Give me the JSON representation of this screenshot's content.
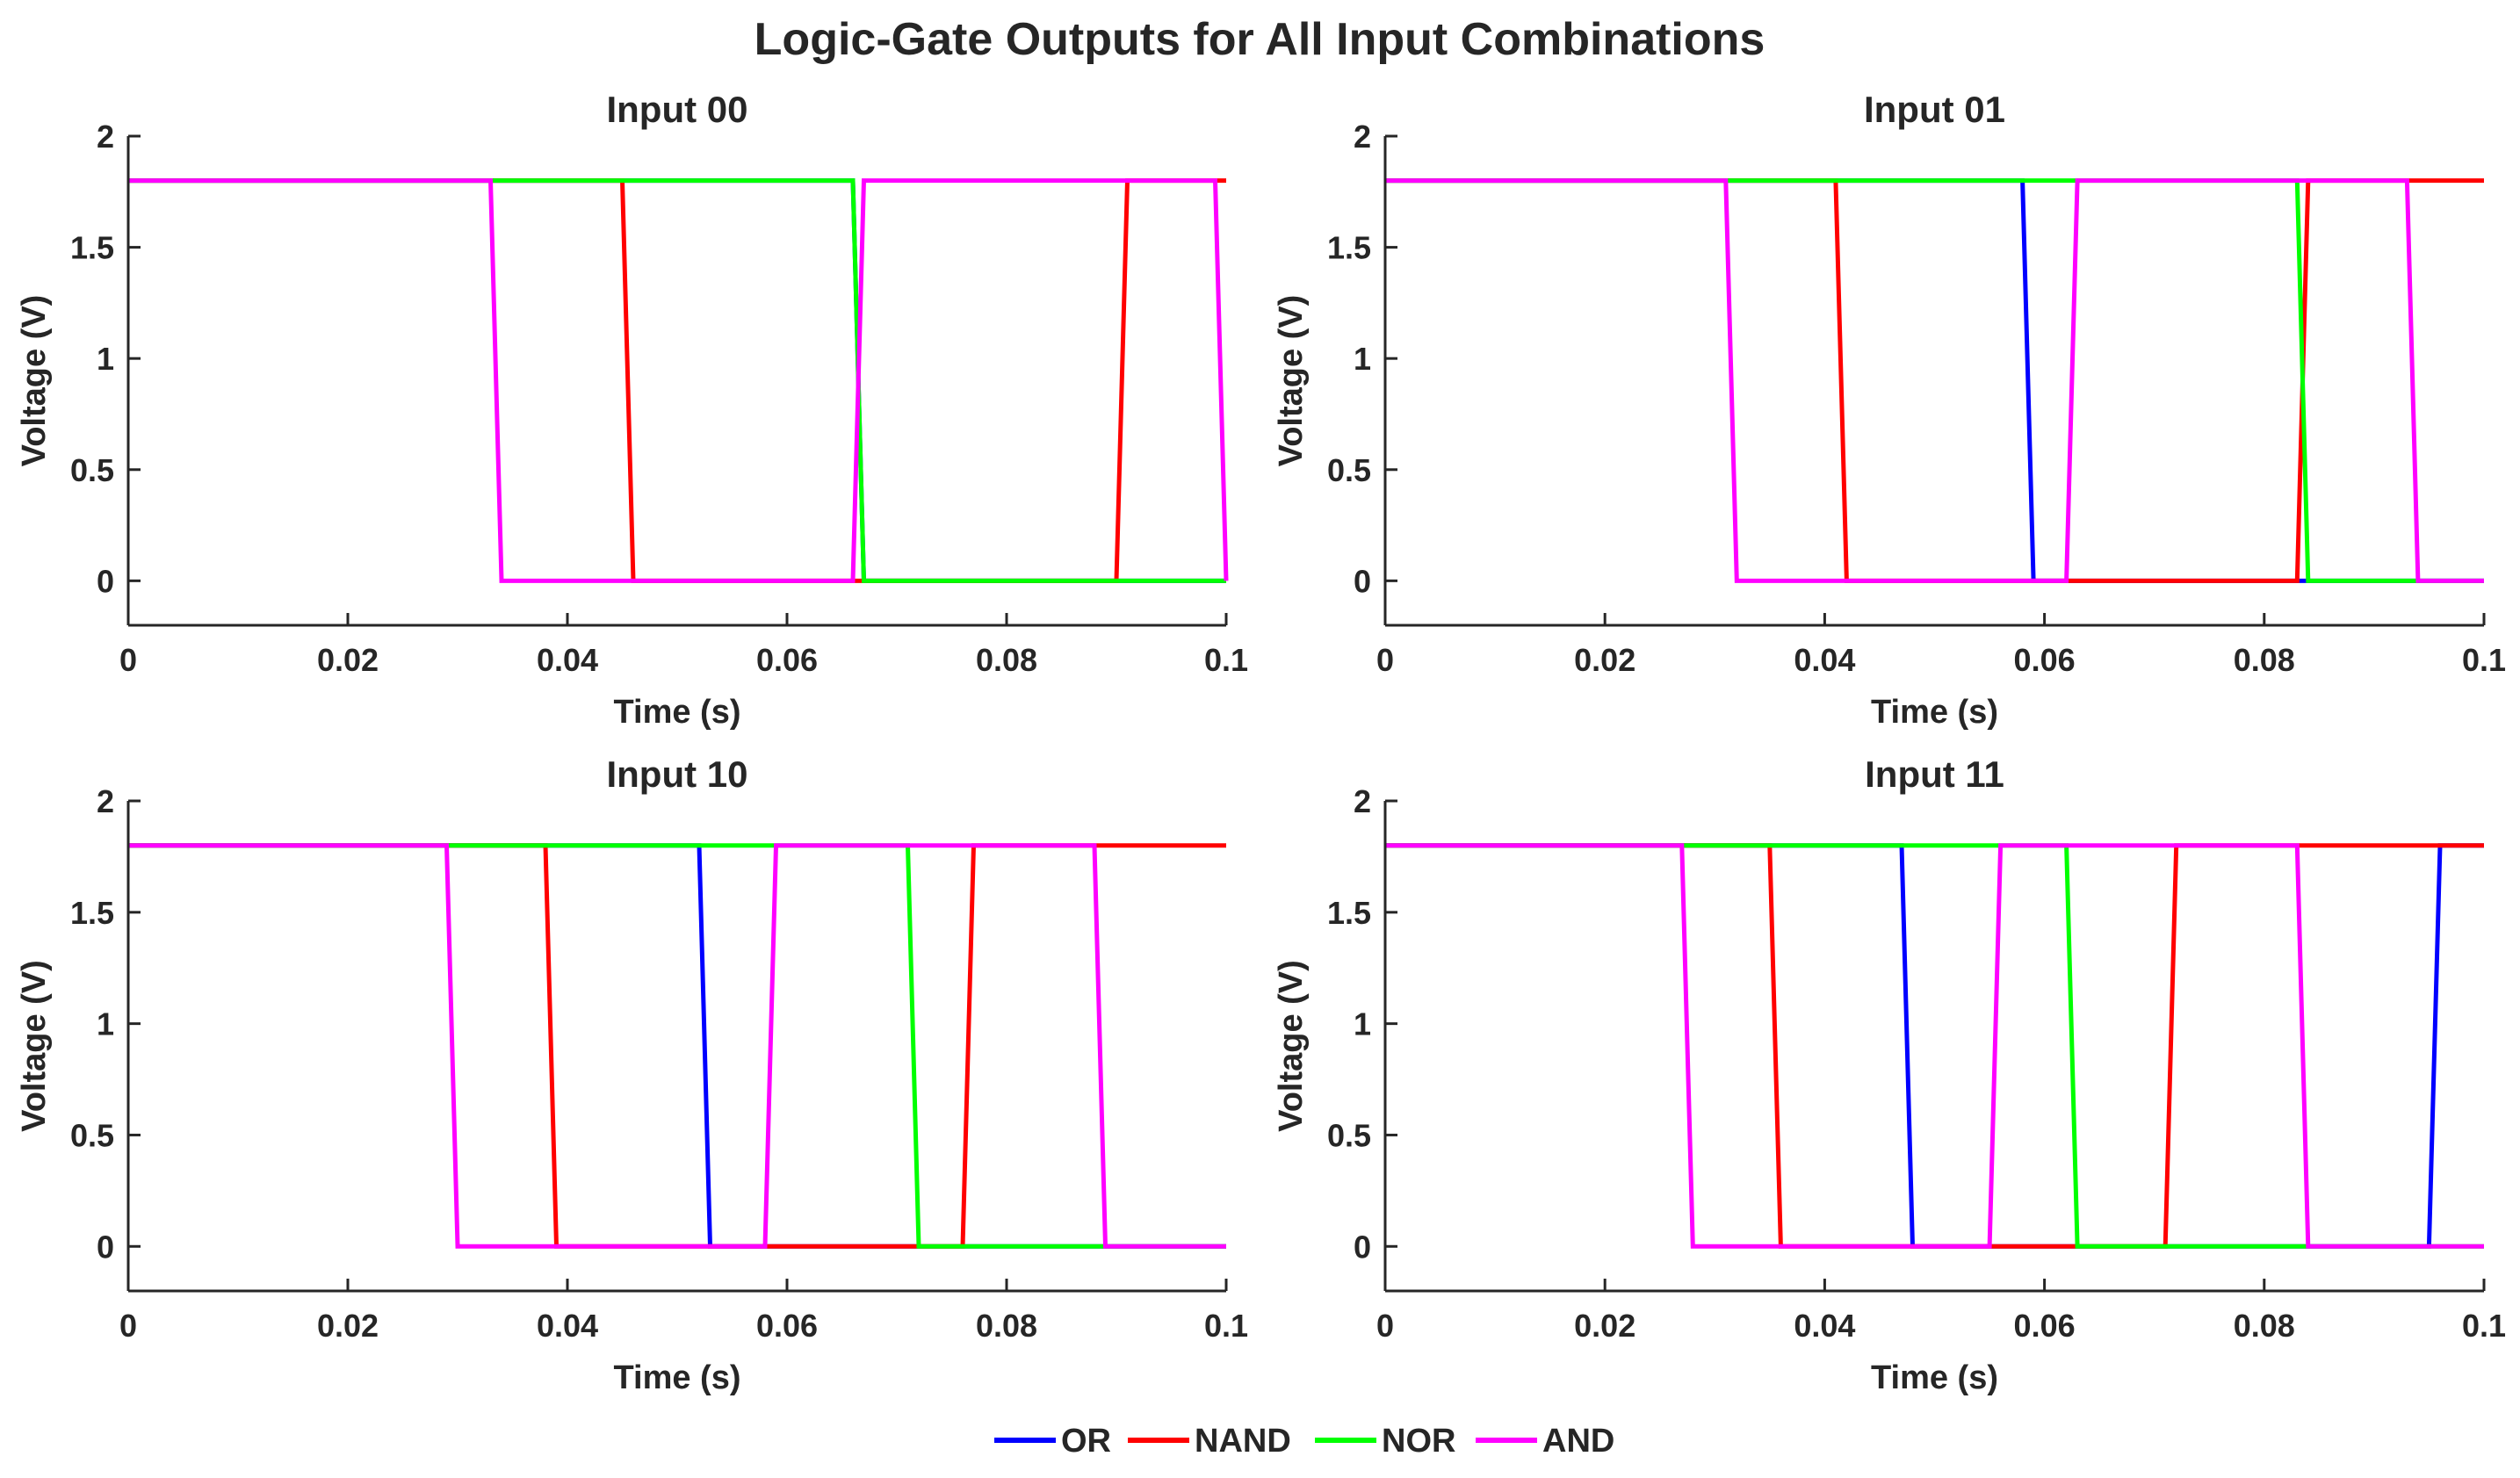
{
  "chart_data": {
    "type": "line",
    "title": "Logic-Gate Outputs for All Input Combinations",
    "xlabel": "Time (s)",
    "ylabel": "Voltage (V)",
    "xlim": [
      0,
      0.1
    ],
    "ylim": [
      -0.2,
      2
    ],
    "xticks": [
      "0",
      "0.02",
      "0.04",
      "0.06",
      "0.08",
      "0.1"
    ],
    "yticks": [
      "0",
      "0.5",
      "1",
      "1.5",
      "2"
    ],
    "legend": {
      "placement": "bottom-center",
      "entries": [
        {
          "name": "OR",
          "color": "#0000ff"
        },
        {
          "name": "NAND",
          "color": "#ff0000"
        },
        {
          "name": "NOR",
          "color": "#00ff00"
        },
        {
          "name": "AND",
          "color": "#ff00ff"
        }
      ]
    },
    "panels": [
      {
        "title": "Input 00",
        "series": [
          {
            "name": "OR",
            "x": [
              0,
              0.066,
              0.067,
              0.1
            ],
            "y": [
              1.8,
              1.8,
              0,
              0
            ]
          },
          {
            "name": "NAND",
            "x": [
              0,
              0.045,
              0.046,
              0.09,
              0.091,
              0.1
            ],
            "y": [
              1.8,
              1.8,
              0,
              0,
              1.8,
              1.8
            ]
          },
          {
            "name": "NOR",
            "x": [
              0,
              0.066,
              0.067,
              0.1
            ],
            "y": [
              1.8,
              1.8,
              0,
              0
            ]
          },
          {
            "name": "AND",
            "x": [
              0,
              0.033,
              0.034,
              0.066,
              0.067,
              0.099,
              0.1
            ],
            "y": [
              1.8,
              1.8,
              0,
              0,
              1.8,
              1.8,
              0
            ]
          }
        ]
      },
      {
        "title": "Input 01",
        "series": [
          {
            "name": "OR",
            "x": [
              0,
              0.058,
              0.059,
              0.1
            ],
            "y": [
              1.8,
              1.8,
              0,
              0
            ]
          },
          {
            "name": "NAND",
            "x": [
              0,
              0.041,
              0.042,
              0.083,
              0.084,
              0.1
            ],
            "y": [
              1.8,
              1.8,
              0,
              0,
              1.8,
              1.8
            ]
          },
          {
            "name": "NOR",
            "x": [
              0,
              0.083,
              0.084,
              0.1
            ],
            "y": [
              1.8,
              1.8,
              0,
              0
            ]
          },
          {
            "name": "AND",
            "x": [
              0,
              0.031,
              0.032,
              0.062,
              0.063,
              0.093,
              0.094,
              0.1
            ],
            "y": [
              1.8,
              1.8,
              0,
              0,
              1.8,
              1.8,
              0,
              0
            ]
          }
        ]
      },
      {
        "title": "Input 10",
        "series": [
          {
            "name": "OR",
            "x": [
              0,
              0.052,
              0.053,
              0.1
            ],
            "y": [
              1.8,
              1.8,
              0,
              0
            ]
          },
          {
            "name": "NAND",
            "x": [
              0,
              0.038,
              0.039,
              0.076,
              0.077,
              0.1
            ],
            "y": [
              1.8,
              1.8,
              0,
              0,
              1.8,
              1.8
            ]
          },
          {
            "name": "NOR",
            "x": [
              0,
              0.071,
              0.072,
              0.1
            ],
            "y": [
              1.8,
              1.8,
              0,
              0
            ]
          },
          {
            "name": "AND",
            "x": [
              0,
              0.029,
              0.03,
              0.058,
              0.059,
              0.088,
              0.089,
              0.1
            ],
            "y": [
              1.8,
              1.8,
              0,
              0,
              1.8,
              1.8,
              0,
              0
            ]
          }
        ]
      },
      {
        "title": "Input 11",
        "series": [
          {
            "name": "OR",
            "x": [
              0,
              0.047,
              0.048,
              0.095,
              0.096,
              0.1
            ],
            "y": [
              1.8,
              1.8,
              0,
              0,
              1.8,
              1.8
            ]
          },
          {
            "name": "NAND",
            "x": [
              0,
              0.035,
              0.036,
              0.071,
              0.072,
              0.1
            ],
            "y": [
              1.8,
              1.8,
              0,
              0,
              1.8,
              1.8
            ]
          },
          {
            "name": "NOR",
            "x": [
              0,
              0.062,
              0.063,
              0.1
            ],
            "y": [
              1.8,
              1.8,
              0,
              0
            ]
          },
          {
            "name": "AND",
            "x": [
              0,
              0.027,
              0.028,
              0.055,
              0.056,
              0.083,
              0.084,
              0.1
            ],
            "y": [
              1.8,
              1.8,
              0,
              0,
              1.8,
              1.8,
              0,
              0
            ]
          }
        ]
      }
    ]
  }
}
